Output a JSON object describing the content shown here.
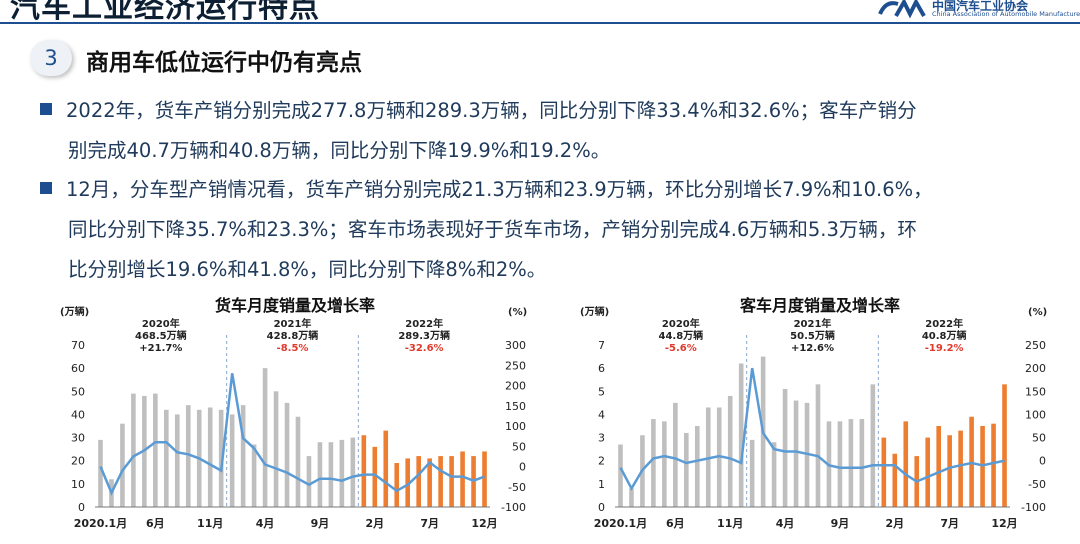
{
  "header": {
    "title": "汽车工业经济运行特点",
    "org_cn": "中国汽车工业协会",
    "org_en": "China Association of Automobile Manufacturers"
  },
  "section": {
    "number": "3",
    "title": "商用车低位运行中仍有亮点"
  },
  "para1": {
    "line1": "2022年，货车产销分别完成277.8万辆和289.3万辆，同比分别下降33.4%和32.6%；客车产销分",
    "line2": "别完成40.7万辆和40.8万辆，同比分别下降19.9%和19.2%。"
  },
  "para2": {
    "line1": "12月，分车型产销情况看，货车产销分别完成21.3万辆和23.9万辆，环比分别增长7.9%和10.6%，",
    "line2": "同比分别下降35.7%和23.3%；客车市场表现好于货车市场，产销分别完成4.6万辆和5.3万辆，环",
    "line3": "比分别增长19.6%和41.8%，同比分别下降8%和2%。"
  },
  "colors": {
    "bar_gray": "#bfbfbf",
    "bar_orange": "#ed7d31",
    "line": "#5b9bd5",
    "red": "#e03a2c",
    "brand": "#1d4e8f"
  },
  "chart_data": [
    {
      "type": "bar",
      "title": "货车月度销量及增长率",
      "y_unit": "(万辆)",
      "y2_unit": "(%)",
      "y_ticks": [
        "0",
        "10",
        "20",
        "30",
        "40",
        "50",
        "60",
        "70"
      ],
      "y2_ticks": [
        "-100",
        "-50",
        "0",
        "50",
        "100",
        "150",
        "200",
        "250",
        "300"
      ],
      "ylim": [
        0,
        70
      ],
      "y2lim": [
        -100,
        300
      ],
      "x_tick_labels": [
        [
          "2020.1月",
          0
        ],
        [
          "6月",
          5
        ],
        [
          "11月",
          10
        ],
        [
          "4月",
          15
        ],
        [
          "9月",
          20
        ],
        [
          "2月",
          25
        ],
        [
          "7月",
          30
        ],
        [
          "12月",
          35
        ]
      ],
      "year_notes": [
        {
          "year": "2020年",
          "volume": "468.5万辆",
          "rate": "+21.7%",
          "red": false
        },
        {
          "year": "2021年",
          "volume": "428.8万辆",
          "rate": "-8.5%",
          "red": true
        },
        {
          "year": "2022年",
          "volume": "289.3万辆",
          "rate": "-32.6%",
          "red": true
        }
      ],
      "series": [
        {
          "name": "销量",
          "values": [
            29,
            12,
            36,
            49,
            48,
            49,
            42,
            40,
            44,
            42,
            43,
            42,
            40,
            44,
            27,
            60,
            50,
            45,
            39,
            22,
            28,
            28,
            29,
            30,
            31,
            26,
            33,
            19,
            21,
            22,
            21,
            22,
            22,
            24,
            22,
            24
          ]
        },
        {
          "name": "增长率",
          "values": [
            0,
            -65,
            -10,
            25,
            40,
            60,
            60,
            35,
            30,
            20,
            5,
            -10,
            230,
            70,
            45,
            5,
            -5,
            -15,
            -30,
            -45,
            -30,
            -30,
            -35,
            -25,
            -20,
            -20,
            -40,
            -60,
            -45,
            -20,
            10,
            -10,
            -25,
            -25,
            -35,
            -25
          ]
        }
      ]
    },
    {
      "type": "bar",
      "title": "客车月度销量及增长率",
      "y_unit": "(万辆)",
      "y2_unit": "(%)",
      "y_ticks": [
        "0",
        "1",
        "2",
        "3",
        "4",
        "5",
        "6",
        "7"
      ],
      "y2_ticks": [
        "-100",
        "-50",
        "0",
        "50",
        "100",
        "150",
        "200",
        "250"
      ],
      "ylim": [
        0,
        7
      ],
      "y2lim": [
        -100,
        250
      ],
      "x_tick_labels": [
        [
          "2020.1月",
          0
        ],
        [
          "6月",
          5
        ],
        [
          "11月",
          10
        ],
        [
          "4月",
          15
        ],
        [
          "9月",
          20
        ],
        [
          "2月",
          25
        ],
        [
          "7月",
          30
        ],
        [
          "12月",
          35
        ]
      ],
      "year_notes": [
        {
          "year": "2020年",
          "volume": "44.8万辆",
          "rate": "-5.6%",
          "red": true
        },
        {
          "year": "2021年",
          "volume": "50.5万辆",
          "rate": "+12.6%",
          "red": false
        },
        {
          "year": "2022年",
          "volume": "40.8万辆",
          "rate": "-19.2%",
          "red": true
        }
      ],
      "series": [
        {
          "name": "销量",
          "values": [
            2.7,
            0.8,
            3.1,
            3.8,
            3.7,
            4.5,
            3.2,
            3.5,
            4.3,
            4.3,
            4.8,
            6.2,
            2.9,
            6.5,
            2.8,
            5.1,
            4.6,
            4.5,
            5.3,
            3.7,
            3.7,
            3.8,
            3.8,
            5.3,
            3.0,
            2.3,
            3.7,
            2.2,
            3.0,
            3.5,
            3.1,
            3.3,
            3.9,
            3.5,
            3.6,
            5.3
          ]
        },
        {
          "name": "增长率",
          "values": [
            -15,
            -60,
            -20,
            5,
            10,
            5,
            -5,
            0,
            5,
            10,
            5,
            -5,
            200,
            60,
            25,
            20,
            20,
            15,
            10,
            -10,
            -15,
            -15,
            -15,
            -10,
            -10,
            -10,
            -30,
            -45,
            -35,
            -25,
            -15,
            -10,
            -5,
            -10,
            -5,
            0
          ]
        }
      ]
    }
  ]
}
